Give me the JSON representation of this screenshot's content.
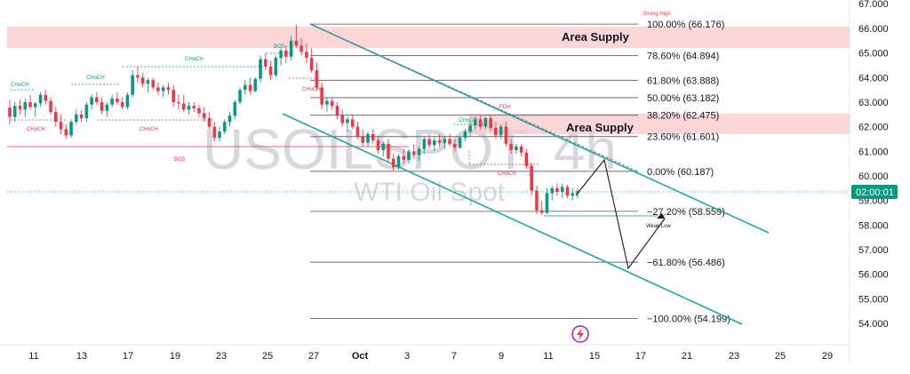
{
  "chart_data": {
    "type": "candlestick",
    "title": "",
    "watermark": {
      "symbol": "USOILSPOT, 4h",
      "name": "WTI Oil Spot"
    },
    "price_axis": {
      "ylim": [
        53.5,
        67.0
      ],
      "ticks": [
        "54.000",
        "55.000",
        "56.000",
        "57.000",
        "58.000",
        "59.000",
        "60.000",
        "61.000",
        "62.000",
        "63.000",
        "64.000",
        "65.000",
        "66.000"
      ],
      "top_tick": "67.000"
    },
    "time_axis": {
      "ticks": [
        "11",
        "13",
        "17",
        "19",
        "23",
        "25",
        "27",
        "Oct",
        "3",
        "7",
        "9",
        "11",
        "15",
        "17",
        "21",
        "23",
        "25",
        "29"
      ]
    },
    "current_time_label": "02:00:01",
    "current_price": 59.38,
    "fib_levels": [
      {
        "label": "100.00% (66.176)",
        "price": 66.176
      },
      {
        "label": "78.60% (64.894)",
        "price": 64.894
      },
      {
        "label": "61.80% (63.888)",
        "price": 63.888
      },
      {
        "label": "50.00% (63.182)",
        "price": 63.182
      },
      {
        "label": "38.20% (62.475)",
        "price": 62.475
      },
      {
        "label": "23.60% (61.601)",
        "price": 61.601
      },
      {
        "label": "0.00% (60.187)",
        "price": 60.187
      },
      {
        "label": "−27.20% (58.559)",
        "price": 58.559
      },
      {
        "label": "−61.80% (56.486)",
        "price": 56.486
      },
      {
        "label": "−100.00% (54.199)",
        "price": 54.199
      }
    ],
    "supply_zones": [
      {
        "label": "Area Supply",
        "from": 65.2,
        "to": 66.1
      },
      {
        "label": "Area Supply",
        "from": 61.8,
        "to": 62.45
      }
    ],
    "structure_labels": [
      "CHoCH",
      "CHoCH",
      "CHoCH",
      "CHoCH",
      "CHoCH",
      "CHoCH",
      "CHoCH",
      "BOS",
      "BOS",
      "CHoCH",
      "Strong High",
      "FOH",
      "Weak Low"
    ],
    "colors": {
      "up": "#089981",
      "down": "#f23645",
      "channel": "#26a69a",
      "fib": "#787b86",
      "supply": "#f8c8cc",
      "price_badge": "#089981"
    },
    "candles": [
      {
        "o": 62.78,
        "h": 63.1,
        "l": 62.1,
        "c": 62.4
      },
      {
        "o": 62.4,
        "h": 63.0,
        "l": 62.2,
        "c": 62.85
      },
      {
        "o": 62.85,
        "h": 63.1,
        "l": 62.5,
        "c": 62.7
      },
      {
        "o": 62.7,
        "h": 63.15,
        "l": 62.4,
        "c": 63.0
      },
      {
        "o": 63.0,
        "h": 63.3,
        "l": 62.7,
        "c": 62.8
      },
      {
        "o": 62.8,
        "h": 63.0,
        "l": 62.4,
        "c": 62.95
      },
      {
        "o": 62.95,
        "h": 63.4,
        "l": 62.8,
        "c": 63.3
      },
      {
        "o": 63.3,
        "h": 63.5,
        "l": 62.9,
        "c": 63.05
      },
      {
        "o": 63.05,
        "h": 63.2,
        "l": 62.5,
        "c": 62.6
      },
      {
        "o": 62.6,
        "h": 62.8,
        "l": 62.0,
        "c": 62.2
      },
      {
        "o": 62.2,
        "h": 62.5,
        "l": 61.7,
        "c": 61.9
      },
      {
        "o": 61.9,
        "h": 62.1,
        "l": 61.5,
        "c": 61.65
      },
      {
        "o": 61.65,
        "h": 62.3,
        "l": 61.55,
        "c": 62.2
      },
      {
        "o": 62.2,
        "h": 62.7,
        "l": 62.1,
        "c": 62.5
      },
      {
        "o": 62.5,
        "h": 62.7,
        "l": 62.2,
        "c": 62.35
      },
      {
        "o": 62.35,
        "h": 63.0,
        "l": 62.2,
        "c": 62.9
      },
      {
        "o": 62.9,
        "h": 63.3,
        "l": 62.7,
        "c": 63.2
      },
      {
        "o": 63.2,
        "h": 63.4,
        "l": 62.9,
        "c": 63.0
      },
      {
        "o": 63.0,
        "h": 63.2,
        "l": 62.5,
        "c": 62.65
      },
      {
        "o": 62.65,
        "h": 63.0,
        "l": 62.4,
        "c": 62.9
      },
      {
        "o": 62.9,
        "h": 63.3,
        "l": 62.8,
        "c": 63.15
      },
      {
        "o": 63.15,
        "h": 63.4,
        "l": 62.9,
        "c": 63.0
      },
      {
        "o": 63.0,
        "h": 63.2,
        "l": 62.7,
        "c": 62.8
      },
      {
        "o": 62.8,
        "h": 63.4,
        "l": 62.7,
        "c": 63.3
      },
      {
        "o": 63.3,
        "h": 64.3,
        "l": 63.2,
        "c": 64.1
      },
      {
        "o": 64.1,
        "h": 64.45,
        "l": 63.8,
        "c": 64.0
      },
      {
        "o": 64.0,
        "h": 64.2,
        "l": 63.6,
        "c": 63.75
      },
      {
        "o": 63.75,
        "h": 64.0,
        "l": 63.4,
        "c": 63.9
      },
      {
        "o": 63.9,
        "h": 64.0,
        "l": 63.5,
        "c": 63.6
      },
      {
        "o": 63.6,
        "h": 63.8,
        "l": 63.3,
        "c": 63.45
      },
      {
        "o": 63.45,
        "h": 63.7,
        "l": 63.2,
        "c": 63.6
      },
      {
        "o": 63.6,
        "h": 63.8,
        "l": 63.3,
        "c": 63.5
      },
      {
        "o": 63.5,
        "h": 63.7,
        "l": 62.8,
        "c": 63.0
      },
      {
        "o": 63.0,
        "h": 63.3,
        "l": 62.7,
        "c": 62.95
      },
      {
        "o": 62.95,
        "h": 63.3,
        "l": 62.6,
        "c": 62.7
      },
      {
        "o": 62.7,
        "h": 63.0,
        "l": 62.5,
        "c": 62.85
      },
      {
        "o": 62.85,
        "h": 63.0,
        "l": 62.6,
        "c": 62.75
      },
      {
        "o": 62.75,
        "h": 62.9,
        "l": 62.4,
        "c": 62.55
      },
      {
        "o": 62.55,
        "h": 62.8,
        "l": 62.2,
        "c": 62.35
      },
      {
        "o": 62.35,
        "h": 62.6,
        "l": 61.9,
        "c": 62.0
      },
      {
        "o": 62.0,
        "h": 62.2,
        "l": 61.4,
        "c": 61.55
      },
      {
        "o": 61.55,
        "h": 62.0,
        "l": 61.4,
        "c": 61.8
      },
      {
        "o": 61.8,
        "h": 62.3,
        "l": 61.7,
        "c": 62.2
      },
      {
        "o": 62.2,
        "h": 62.6,
        "l": 62.0,
        "c": 62.45
      },
      {
        "o": 62.45,
        "h": 63.1,
        "l": 62.3,
        "c": 63.0
      },
      {
        "o": 63.0,
        "h": 63.6,
        "l": 62.9,
        "c": 63.5
      },
      {
        "o": 63.5,
        "h": 63.9,
        "l": 63.3,
        "c": 63.7
      },
      {
        "o": 63.7,
        "h": 64.0,
        "l": 63.3,
        "c": 63.45
      },
      {
        "o": 63.45,
        "h": 64.0,
        "l": 63.4,
        "c": 63.95
      },
      {
        "o": 63.95,
        "h": 64.9,
        "l": 63.8,
        "c": 64.75
      },
      {
        "o": 64.75,
        "h": 65.0,
        "l": 64.3,
        "c": 64.45
      },
      {
        "o": 64.45,
        "h": 64.7,
        "l": 63.9,
        "c": 64.1
      },
      {
        "o": 64.1,
        "h": 64.9,
        "l": 64.0,
        "c": 64.8
      },
      {
        "o": 64.8,
        "h": 65.2,
        "l": 64.5,
        "c": 65.1
      },
      {
        "o": 65.1,
        "h": 65.3,
        "l": 64.6,
        "c": 64.85
      },
      {
        "o": 64.85,
        "h": 65.7,
        "l": 64.7,
        "c": 65.5
      },
      {
        "o": 65.5,
        "h": 66.15,
        "l": 65.2,
        "c": 65.3
      },
      {
        "o": 65.3,
        "h": 65.6,
        "l": 64.9,
        "c": 65.05
      },
      {
        "o": 65.05,
        "h": 65.4,
        "l": 64.6,
        "c": 64.8
      },
      {
        "o": 64.8,
        "h": 65.2,
        "l": 64.2,
        "c": 64.3
      },
      {
        "o": 64.3,
        "h": 64.6,
        "l": 63.5,
        "c": 63.6
      },
      {
        "o": 63.6,
        "h": 63.8,
        "l": 62.7,
        "c": 62.9
      },
      {
        "o": 62.9,
        "h": 63.2,
        "l": 62.6,
        "c": 63.05
      },
      {
        "o": 63.05,
        "h": 63.2,
        "l": 62.7,
        "c": 62.85
      },
      {
        "o": 62.85,
        "h": 63.0,
        "l": 62.3,
        "c": 62.45
      },
      {
        "o": 62.45,
        "h": 62.7,
        "l": 62.0,
        "c": 62.15
      },
      {
        "o": 62.15,
        "h": 62.4,
        "l": 61.8,
        "c": 62.3
      },
      {
        "o": 62.3,
        "h": 62.5,
        "l": 61.9,
        "c": 62.0
      },
      {
        "o": 62.0,
        "h": 62.2,
        "l": 61.5,
        "c": 61.6
      },
      {
        "o": 61.6,
        "h": 61.9,
        "l": 61.2,
        "c": 61.35
      },
      {
        "o": 61.35,
        "h": 61.8,
        "l": 61.2,
        "c": 61.7
      },
      {
        "o": 61.7,
        "h": 61.9,
        "l": 61.3,
        "c": 61.45
      },
      {
        "o": 61.45,
        "h": 61.6,
        "l": 60.9,
        "c": 61.05
      },
      {
        "o": 61.05,
        "h": 61.4,
        "l": 60.8,
        "c": 61.3
      },
      {
        "o": 61.3,
        "h": 61.5,
        "l": 60.6,
        "c": 60.7
      },
      {
        "o": 60.7,
        "h": 60.9,
        "l": 60.2,
        "c": 60.35
      },
      {
        "o": 60.35,
        "h": 60.9,
        "l": 60.25,
        "c": 60.8
      },
      {
        "o": 60.8,
        "h": 61.1,
        "l": 60.5,
        "c": 60.65
      },
      {
        "o": 60.65,
        "h": 61.1,
        "l": 60.5,
        "c": 61.0
      },
      {
        "o": 61.0,
        "h": 61.3,
        "l": 60.7,
        "c": 60.85
      },
      {
        "o": 60.85,
        "h": 61.2,
        "l": 60.6,
        "c": 61.1
      },
      {
        "o": 61.1,
        "h": 61.6,
        "l": 60.9,
        "c": 61.5
      },
      {
        "o": 61.5,
        "h": 61.7,
        "l": 61.1,
        "c": 61.25
      },
      {
        "o": 61.25,
        "h": 61.6,
        "l": 61.0,
        "c": 61.45
      },
      {
        "o": 61.45,
        "h": 61.7,
        "l": 61.2,
        "c": 61.35
      },
      {
        "o": 61.35,
        "h": 61.6,
        "l": 61.1,
        "c": 61.5
      },
      {
        "o": 61.5,
        "h": 61.7,
        "l": 61.2,
        "c": 61.3
      },
      {
        "o": 61.3,
        "h": 61.5,
        "l": 61.0,
        "c": 61.15
      },
      {
        "o": 61.15,
        "h": 61.6,
        "l": 61.1,
        "c": 61.55
      },
      {
        "o": 61.55,
        "h": 61.9,
        "l": 61.4,
        "c": 61.8
      },
      {
        "o": 61.8,
        "h": 62.2,
        "l": 61.6,
        "c": 62.05
      },
      {
        "o": 62.05,
        "h": 62.4,
        "l": 61.9,
        "c": 62.3
      },
      {
        "o": 62.3,
        "h": 62.45,
        "l": 61.9,
        "c": 62.0
      },
      {
        "o": 62.0,
        "h": 62.4,
        "l": 61.9,
        "c": 62.35
      },
      {
        "o": 62.35,
        "h": 62.45,
        "l": 61.8,
        "c": 61.95
      },
      {
        "o": 61.95,
        "h": 62.2,
        "l": 61.5,
        "c": 61.65
      },
      {
        "o": 61.65,
        "h": 62.1,
        "l": 61.5,
        "c": 62.0
      },
      {
        "o": 62.0,
        "h": 62.2,
        "l": 61.2,
        "c": 61.3
      },
      {
        "o": 61.3,
        "h": 61.5,
        "l": 60.9,
        "c": 61.05
      },
      {
        "o": 61.05,
        "h": 61.3,
        "l": 60.9,
        "c": 61.2
      },
      {
        "o": 61.2,
        "h": 61.3,
        "l": 60.8,
        "c": 60.95
      },
      {
        "o": 60.95,
        "h": 61.1,
        "l": 60.3,
        "c": 60.4
      },
      {
        "o": 60.4,
        "h": 60.5,
        "l": 59.2,
        "c": 59.4
      },
      {
        "o": 59.4,
        "h": 59.6,
        "l": 58.45,
        "c": 58.6
      },
      {
        "o": 58.6,
        "h": 59.0,
        "l": 58.4,
        "c": 58.5
      },
      {
        "o": 58.5,
        "h": 59.5,
        "l": 58.45,
        "c": 59.3
      },
      {
        "o": 59.3,
        "h": 59.6,
        "l": 59.0,
        "c": 59.5
      },
      {
        "o": 59.5,
        "h": 59.7,
        "l": 59.2,
        "c": 59.35
      },
      {
        "o": 59.35,
        "h": 59.7,
        "l": 59.1,
        "c": 59.55
      },
      {
        "o": 59.55,
        "h": 59.65,
        "l": 59.1,
        "c": 59.2
      },
      {
        "o": 59.2,
        "h": 59.5,
        "l": 59.0,
        "c": 59.3
      },
      {
        "o": 59.3,
        "h": 59.5,
        "l": 59.1,
        "c": 59.38
      }
    ]
  }
}
